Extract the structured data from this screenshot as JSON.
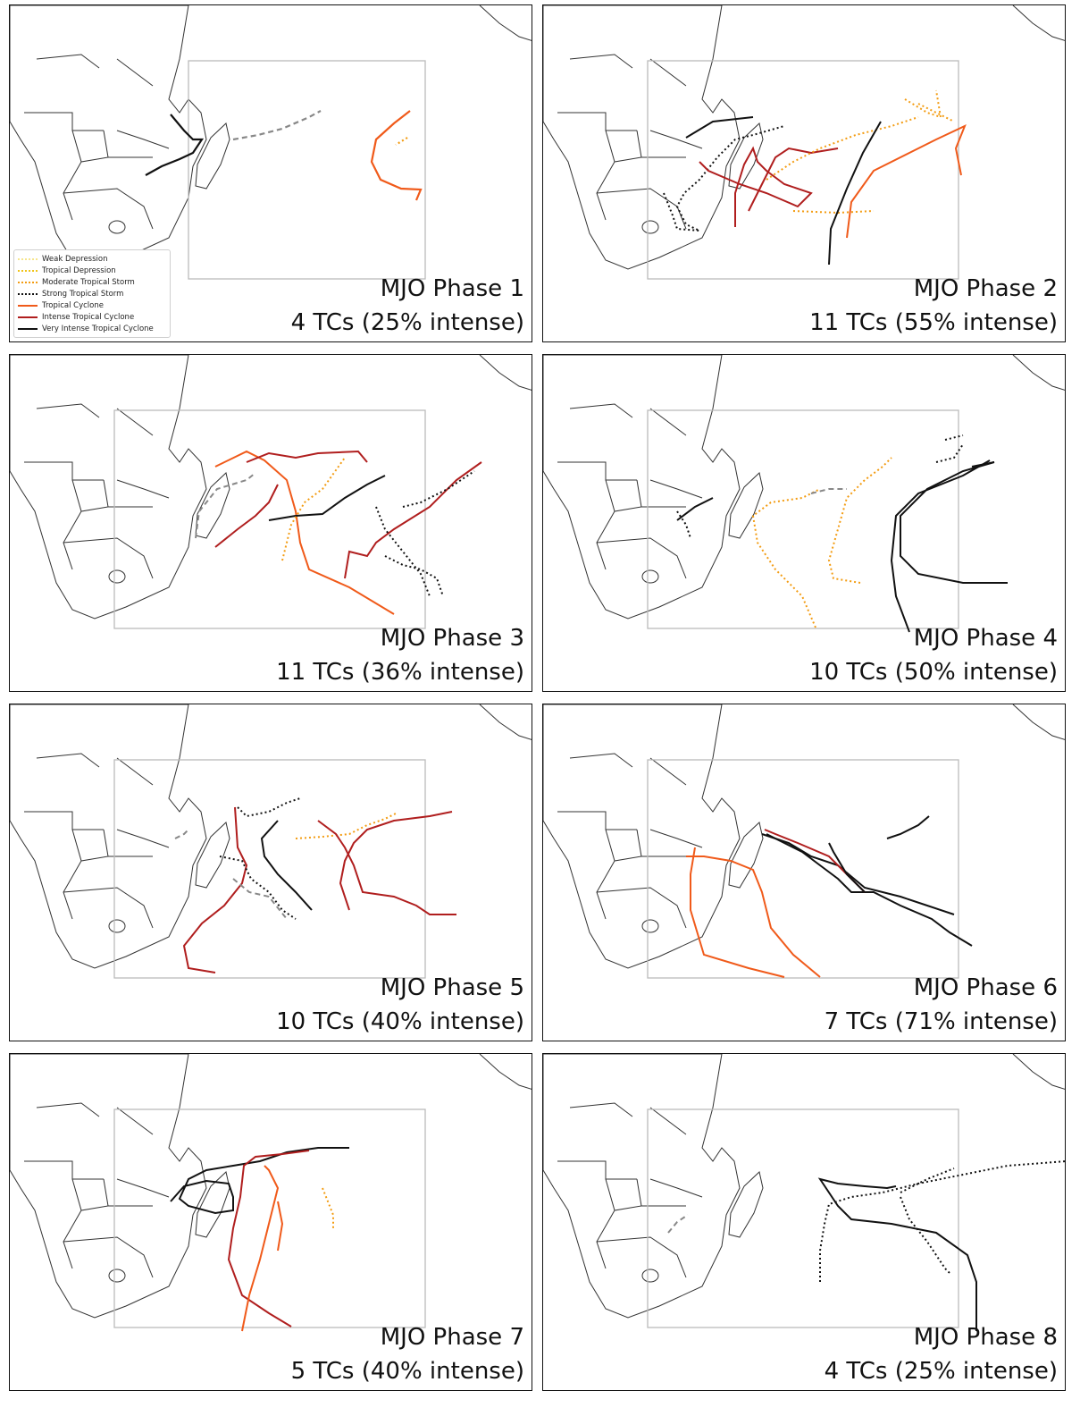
{
  "legend": {
    "items": [
      {
        "label": "Weak Depression",
        "color": "#f6e58d",
        "style": "dotted"
      },
      {
        "label": "Tropical Depression",
        "color": "#f0c419",
        "style": "dotted"
      },
      {
        "label": "Moderate Tropical Storm",
        "color": "#f39c12",
        "style": "dotted"
      },
      {
        "label": "Strong Tropical Storm",
        "color": "#111111",
        "style": "dotted"
      },
      {
        "label": "Tropical Cyclone",
        "color": "#f05a1a",
        "style": "solid"
      },
      {
        "label": "Intense Tropical Cyclone",
        "color": "#b01e1e",
        "style": "solid"
      },
      {
        "label": "Very Intense Tropical Cyclone",
        "color": "#111111",
        "style": "solid"
      }
    ]
  },
  "panels": [
    {
      "title": "MJO Phase 1",
      "subtitle": "4 TCs (25% intense)"
    },
    {
      "title": "MJO Phase 2",
      "subtitle": "11 TCs (55% intense)"
    },
    {
      "title": "MJO Phase 3",
      "subtitle": "11 TCs (36% intense)"
    },
    {
      "title": "MJO Phase 4",
      "subtitle": "10 TCs (50% intense)"
    },
    {
      "title": "MJO Phase 5",
      "subtitle": "10 TCs (40% intense)"
    },
    {
      "title": "MJO Phase 6",
      "subtitle": "7 TCs (71% intense)"
    },
    {
      "title": "MJO Phase 7",
      "subtitle": "5 TCs (40% intense)"
    },
    {
      "title": "MJO Phase 8",
      "subtitle": "4 TCs (25% intense)"
    }
  ],
  "colors": {
    "moderate_storm": "#f39c12",
    "strong_storm": "#111111",
    "tropical_cyclone": "#f05a1a",
    "intense_cyclone": "#b01e1e",
    "very_intense_cyclone": "#111111",
    "depression_dashed": "#888888"
  }
}
